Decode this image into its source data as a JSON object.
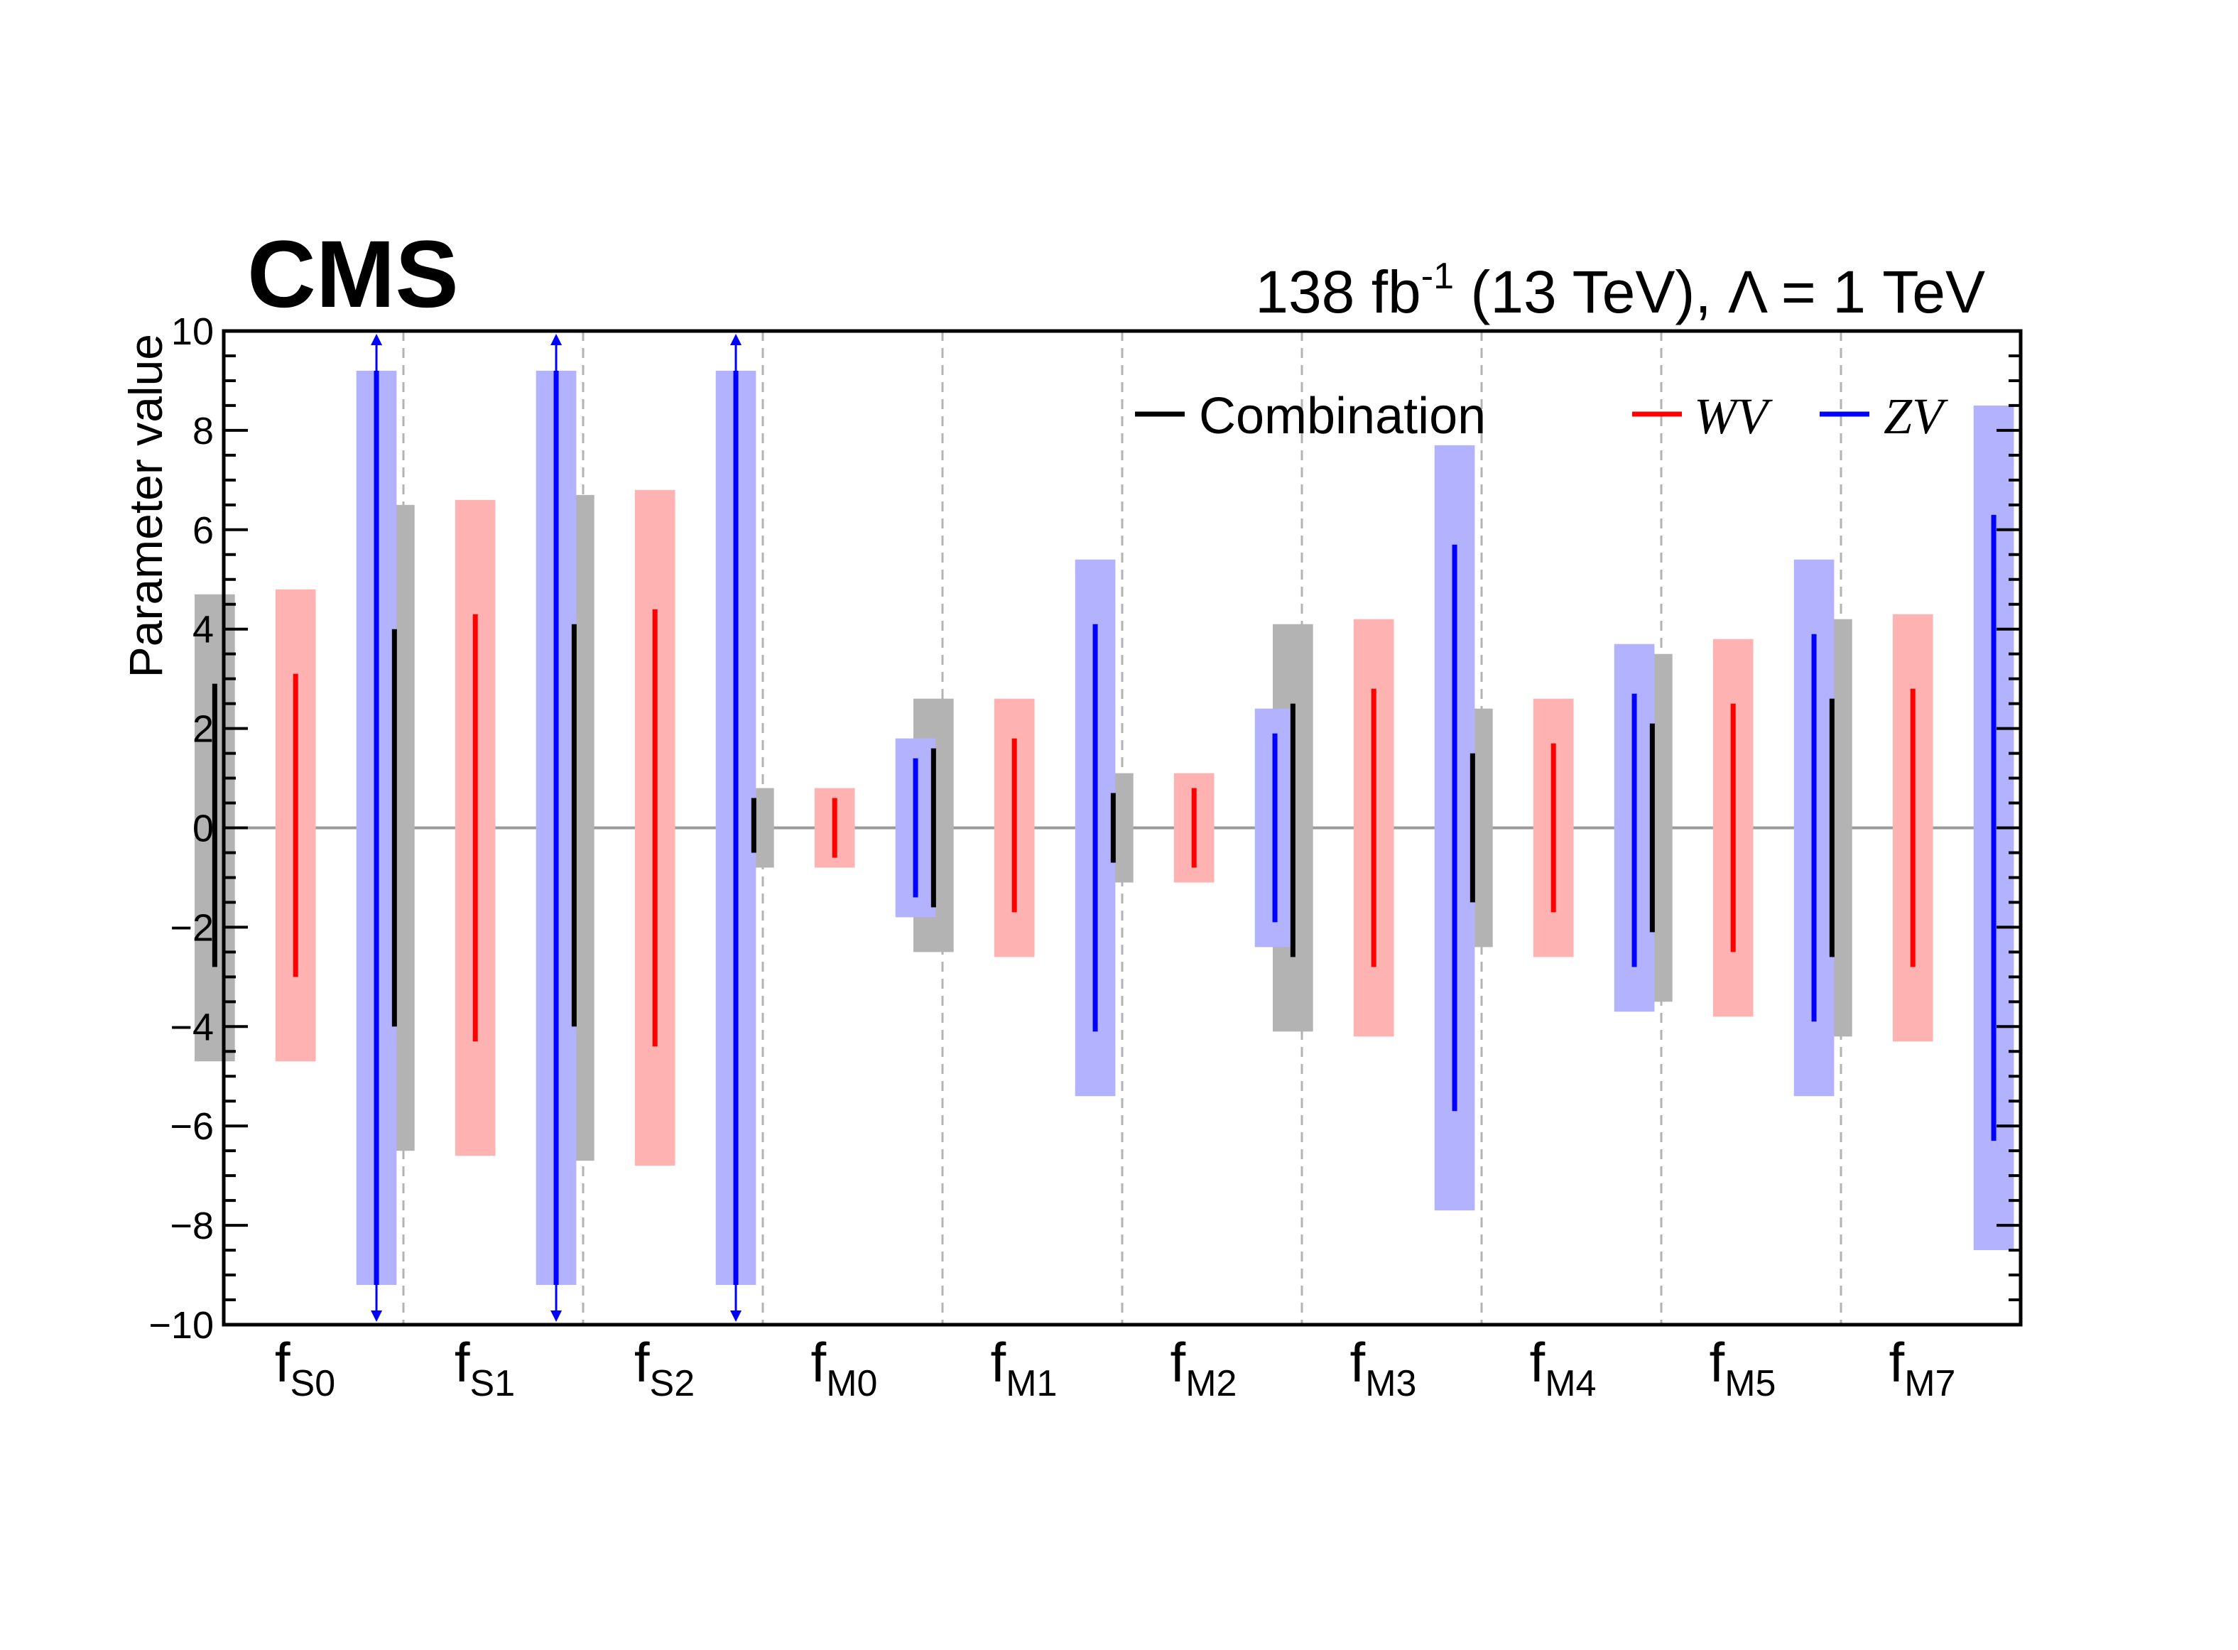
{
  "chart_data": {
    "type": "bar",
    "title": "CMS",
    "lumi_text": "138 fb",
    "lumi_sup": "-1",
    "lumi_rest": " (13 TeV), Λ = 1 TeV",
    "ylabel": "Parameter value",
    "ylim": [
      -10,
      10
    ],
    "y_ticks": [
      {
        "value": -10,
        "label": "−10"
      },
      {
        "value": -8,
        "label": "−8"
      },
      {
        "value": -6,
        "label": "−6"
      },
      {
        "value": -4,
        "label": "−4"
      },
      {
        "value": -2,
        "label": "−2"
      },
      {
        "value": 0,
        "label": "0"
      },
      {
        "value": 2,
        "label": "2"
      },
      {
        "value": 4,
        "label": "4"
      },
      {
        "value": 6,
        "label": "6"
      },
      {
        "value": 8,
        "label": "8"
      },
      {
        "value": 10,
        "label": "10"
      }
    ],
    "categories": [
      {
        "main": "f",
        "sub": "S0"
      },
      {
        "main": "f",
        "sub": "S1"
      },
      {
        "main": "f",
        "sub": "S2"
      },
      {
        "main": "f",
        "sub": "M0"
      },
      {
        "main": "f",
        "sub": "M1"
      },
      {
        "main": "f",
        "sub": "M2"
      },
      {
        "main": "f",
        "sub": "M3"
      },
      {
        "main": "f",
        "sub": "M4"
      },
      {
        "main": "f",
        "sub": "M5"
      },
      {
        "main": "f",
        "sub": "M7"
      }
    ],
    "legend": [
      {
        "label": "Combination",
        "italic": false,
        "color": "#000000"
      },
      {
        "label": "WV",
        "italic": true,
        "color": "#ff0000"
      },
      {
        "label": "ZV",
        "italic": true,
        "color": "#0000ff"
      }
    ],
    "series": [
      {
        "name": "Combination",
        "line_color": "#000000",
        "band_color": "#b3b3b3",
        "exp_low": [
          -4.7,
          -6.5,
          -6.7,
          -0.8,
          -2.5,
          -1.1,
          -4.1,
          -2.4,
          -3.5,
          -4.2
        ],
        "exp_high": [
          4.7,
          6.5,
          6.7,
          0.8,
          2.6,
          1.1,
          4.1,
          2.4,
          3.5,
          4.2
        ],
        "obs_low": [
          -2.8,
          -4.0,
          -4.0,
          -0.5,
          -1.6,
          -0.7,
          -2.6,
          -1.5,
          -2.1,
          -2.6
        ],
        "obs_high": [
          2.9,
          4.0,
          4.1,
          0.6,
          1.6,
          0.7,
          2.5,
          1.5,
          2.1,
          2.6
        ]
      },
      {
        "name": "WV",
        "line_color": "#ff0000",
        "band_color": "#ffb2b2",
        "exp_low": [
          -4.7,
          -6.6,
          -6.8,
          -0.8,
          -2.6,
          -1.1,
          -4.2,
          -2.6,
          -3.8,
          -4.3
        ],
        "exp_high": [
          4.8,
          6.6,
          6.8,
          0.8,
          2.6,
          1.1,
          4.2,
          2.6,
          3.8,
          4.3
        ],
        "obs_low": [
          -3.0,
          -4.3,
          -4.4,
          -0.6,
          -1.7,
          -0.8,
          -2.8,
          -1.7,
          -2.5,
          -2.8
        ],
        "obs_high": [
          3.1,
          4.3,
          4.4,
          0.6,
          1.8,
          0.8,
          2.8,
          1.7,
          2.5,
          2.8
        ]
      },
      {
        "name": "ZV",
        "line_color": "#0000ff",
        "band_color": "#b2b2ff",
        "exp_low": [
          -9.2,
          -9.2,
          -9.2,
          -1.8,
          -5.4,
          -2.4,
          -7.7,
          -3.7,
          -5.4,
          -8.5
        ],
        "exp_high": [
          9.2,
          9.2,
          9.2,
          1.8,
          5.4,
          2.4,
          7.7,
          3.7,
          5.4,
          8.5
        ],
        "obs_low": [
          -9.2,
          -9.2,
          -9.2,
          -1.4,
          -4.1,
          -1.9,
          -5.7,
          -2.8,
          -3.9,
          -6.3
        ],
        "obs_high": [
          9.2,
          9.2,
          9.2,
          1.4,
          4.1,
          1.9,
          5.7,
          2.7,
          3.9,
          6.3
        ],
        "exceeds_range": [
          true,
          true,
          true,
          false,
          false,
          false,
          false,
          false,
          false,
          false
        ]
      }
    ]
  }
}
